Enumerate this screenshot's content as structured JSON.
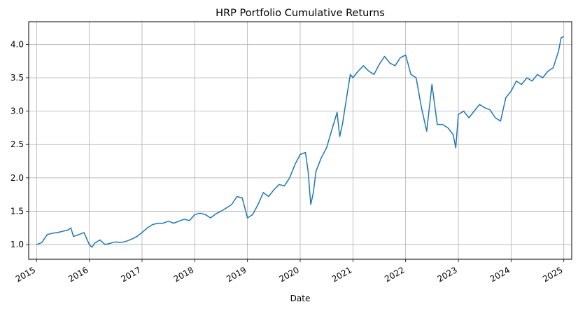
{
  "chart_data": {
    "type": "line",
    "title": "HRP Portfolio Cumulative Returns",
    "xlabel": "Date",
    "ylabel": "",
    "grid": true,
    "xlim": [
      2014.85,
      2025.15
    ],
    "ylim": [
      0.78,
      4.34
    ],
    "x_ticks": [
      2015,
      2016,
      2017,
      2018,
      2019,
      2020,
      2021,
      2022,
      2023,
      2024,
      2025
    ],
    "x_tick_labels": [
      "2015",
      "2016",
      "2017",
      "2018",
      "2019",
      "2020",
      "2021",
      "2022",
      "2023",
      "2024",
      "2025"
    ],
    "y_ticks": [
      1.0,
      1.5,
      2.0,
      2.5,
      3.0,
      3.5,
      4.0
    ],
    "y_tick_labels": [
      "1.0",
      "1.5",
      "2.0",
      "2.5",
      "3.0",
      "3.5",
      "4.0"
    ],
    "series": [
      {
        "color": "#1f77b4",
        "x": [
          2015.0,
          2015.1,
          2015.2,
          2015.3,
          2015.4,
          2015.5,
          2015.6,
          2015.65,
          2015.7,
          2015.8,
          2015.9,
          2016.0,
          2016.05,
          2016.1,
          2016.2,
          2016.3,
          2016.4,
          2016.5,
          2016.6,
          2016.7,
          2016.8,
          2016.9,
          2017.0,
          2017.1,
          2017.2,
          2017.3,
          2017.4,
          2017.5,
          2017.6,
          2017.7,
          2017.8,
          2017.9,
          2018.0,
          2018.1,
          2018.2,
          2018.3,
          2018.4,
          2018.5,
          2018.6,
          2018.7,
          2018.8,
          2018.9,
          2019.0,
          2019.1,
          2019.2,
          2019.3,
          2019.4,
          2019.5,
          2019.6,
          2019.7,
          2019.8,
          2019.9,
          2020.0,
          2020.1,
          2020.15,
          2020.2,
          2020.25,
          2020.3,
          2020.4,
          2020.5,
          2020.6,
          2020.7,
          2020.75,
          2020.8,
          2020.9,
          2020.95,
          2021.0,
          2021.1,
          2021.2,
          2021.3,
          2021.4,
          2021.5,
          2021.6,
          2021.7,
          2021.8,
          2021.9,
          2022.0,
          2022.1,
          2022.2,
          2022.3,
          2022.4,
          2022.5,
          2022.6,
          2022.7,
          2022.8,
          2022.9,
          2022.95,
          2023.0,
          2023.1,
          2023.2,
          2023.3,
          2023.4,
          2023.5,
          2023.6,
          2023.7,
          2023.8,
          2023.9,
          2024.0,
          2024.1,
          2024.2,
          2024.3,
          2024.4,
          2024.5,
          2024.6,
          2024.7,
          2024.8,
          2024.9,
          2024.95,
          2025.0
        ],
        "y": [
          1.0,
          1.03,
          1.15,
          1.17,
          1.18,
          1.2,
          1.22,
          1.25,
          1.12,
          1.15,
          1.18,
          1.0,
          0.96,
          1.02,
          1.07,
          1.0,
          1.02,
          1.04,
          1.03,
          1.05,
          1.08,
          1.12,
          1.18,
          1.25,
          1.3,
          1.32,
          1.32,
          1.35,
          1.32,
          1.35,
          1.38,
          1.36,
          1.45,
          1.47,
          1.45,
          1.4,
          1.46,
          1.5,
          1.55,
          1.6,
          1.72,
          1.7,
          1.4,
          1.45,
          1.6,
          1.78,
          1.72,
          1.82,
          1.9,
          1.88,
          2.0,
          2.2,
          2.35,
          2.38,
          2.1,
          1.6,
          1.78,
          2.1,
          2.3,
          2.45,
          2.72,
          2.98,
          2.62,
          2.8,
          3.3,
          3.55,
          3.5,
          3.6,
          3.68,
          3.6,
          3.55,
          3.7,
          3.82,
          3.72,
          3.68,
          3.8,
          3.84,
          3.55,
          3.5,
          3.05,
          2.7,
          3.4,
          2.8,
          2.8,
          2.75,
          2.65,
          2.45,
          2.95,
          3.0,
          2.9,
          3.0,
          3.1,
          3.05,
          3.02,
          2.9,
          2.85,
          3.2,
          3.3,
          3.45,
          3.4,
          3.5,
          3.45,
          3.55,
          3.5,
          3.6,
          3.65,
          3.9,
          4.1,
          4.12
        ]
      }
    ]
  }
}
